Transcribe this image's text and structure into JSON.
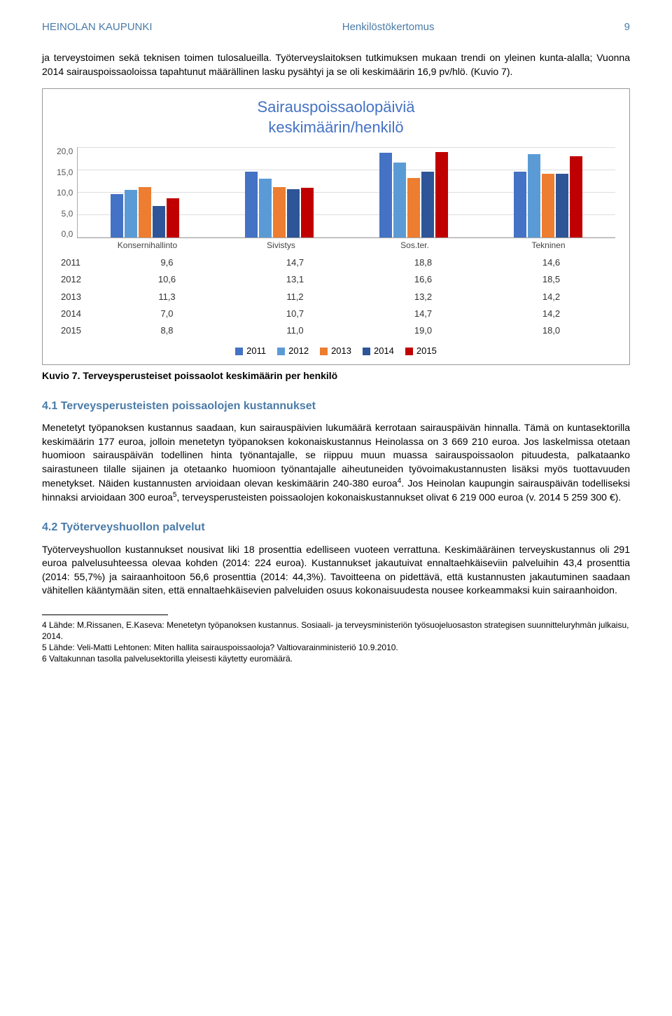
{
  "header": {
    "left": "HEINOLAN KAUPUNKI",
    "center": "Henkilöstökertomus",
    "page": "9"
  },
  "intro_para": "ja terveystoimen sekä teknisen toimen tulosalueilla. Työterveyslaitoksen tutkimuksen mukaan trendi on yleinen kunta-alalla; Vuonna 2014 sairauspoissaoloissa tapahtunut määrällinen lasku pysähtyi ja se oli keskimäärin 16,9 pv/hlö. (Kuvio 7).",
  "chart": {
    "title_line1": "Sairauspoissaolopäiviä",
    "title_line2": "keskimäärin/henkilö",
    "ylim": [
      0,
      20
    ],
    "ytick_step": 5,
    "yticks": [
      "20,0",
      "15,0",
      "10,0",
      "5,0",
      "0,0"
    ],
    "grid_color": "#dddddd",
    "background_color": "#ffffff",
    "categories": [
      "Konsernihallinto",
      "Sivistys",
      "Sos.ter.",
      "Tekninen"
    ],
    "series": [
      {
        "year": "2011",
        "color": "#4472c4",
        "values": [
          9.6,
          14.7,
          18.8,
          14.6
        ],
        "labels": [
          "9,6",
          "14,7",
          "18,8",
          "14,6"
        ]
      },
      {
        "year": "2012",
        "color": "#5b9bd5",
        "values": [
          10.6,
          13.1,
          16.6,
          18.5
        ],
        "labels": [
          "10,6",
          "13,1",
          "16,6",
          "18,5"
        ]
      },
      {
        "year": "2013",
        "color": "#ed7d31",
        "values": [
          11.3,
          11.2,
          13.2,
          14.2
        ],
        "labels": [
          "11,3",
          "11,2",
          "13,2",
          "14,2"
        ]
      },
      {
        "year": "2014",
        "color": "#2e5597",
        "values": [
          7.0,
          10.7,
          14.7,
          14.2
        ],
        "labels": [
          "7,0",
          "10,7",
          "14,7",
          "14,2"
        ]
      },
      {
        "year": "2015",
        "color": "#c00000",
        "values": [
          8.8,
          11.0,
          19.0,
          18.0
        ],
        "labels": [
          "8,8",
          "11,0",
          "19,0",
          "18,0"
        ]
      }
    ],
    "legend_years": [
      "2011",
      "2012",
      "2013",
      "2014",
      "2015"
    ]
  },
  "caption": "Kuvio 7. Terveysperusteiset poissaolot keskimäärin per henkilö",
  "section_41": {
    "heading": "4.1 Terveysperusteisten poissaolojen kustannukset",
    "para": "Menetetyt työpanoksen kustannus saadaan, kun sairauspäivien lukumäärä kerrotaan sairauspäivän hinnalla. Tämä on kuntasektorilla keskimäärin 177 euroa, jolloin menetetyn työpanoksen kokonaiskustannus Heinolassa on 3 669 210 euroa. Jos laskelmissa otetaan huomioon sairauspäivän todellinen hinta työnantajalle, se riippuu muun muassa sairauspoissaolon pituudesta, palkataanko sairastuneen tilalle sijainen ja otetaanko huomioon työnantajalle aiheutuneiden työvoimakustannusten lisäksi myös tuottavuuden menetykset. Näiden kustannusten arvioidaan olevan keskimäärin 240-380 euroa",
    "para_after_sup4": ". Jos Heinolan kaupungin sairauspäivän todelliseksi hinnaksi arvioidaan 300 euroa",
    "para_after_sup5": ", terveysperusteisten poissaolojen kokonaiskustannukset olivat 6 219 000 euroa (v. 2014 5 259 300 €)."
  },
  "section_42": {
    "heading": "4.2 Työterveyshuollon palvelut",
    "para": "Työterveyshuollon kustannukset nousivat liki 18 prosenttia edelliseen vuoteen verrattuna. Keskimääräinen terveyskustannus oli 291 euroa palvelusuhteessa olevaa kohden (2014: 224 euroa). Kustannukset jakautuivat ennaltaehkäiseviin palveluihin 43,4 prosenttia (2014: 55,7%) ja sairaanhoitoon 56,6 prosenttia (2014: 44,3%). Tavoitteena on pidettävä, että kustannusten jakautuminen saadaan vähitellen kääntymään siten, että ennaltaehkäisevien palveluiden osuus kokonaisuudesta nousee korkeammaksi kuin sairaanhoidon."
  },
  "footnotes": {
    "f4": "4 Lähde: M.Rissanen, E.Kaseva: Menetetyn työpanoksen kustannus. Sosiaali- ja terveysministeriön työsuojeluosaston strategisen suunnitteluryhmän julkaisu, 2014.",
    "f5": "5 Lähde: Veli-Matti Lehtonen: Miten hallita sairauspoissaoloja? Valtiovarainministeriö 10.9.2010.",
    "f6": "6 Valtakunnan tasolla palvelusektorilla yleisesti käytetty euromäärä."
  }
}
